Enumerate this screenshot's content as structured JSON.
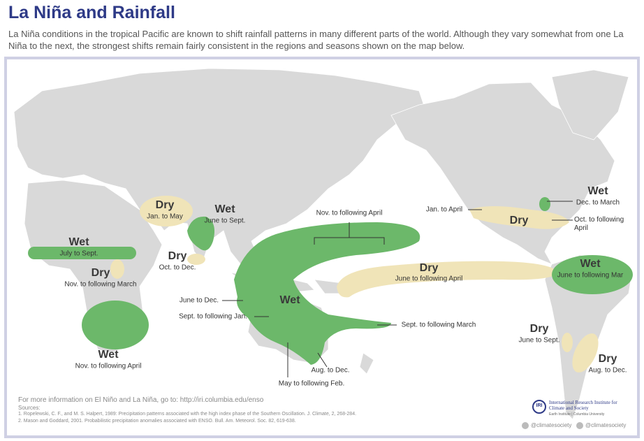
{
  "header": {
    "title": "La Niña and Rainfall",
    "description": "La Niña conditions in the tropical Pacific are known to shift rainfall patterns in many different parts of the world. Although they vary somewhat from one La Niña to the next, the strongest shifts remain fairly consistent in the regions and seasons shown on the map below."
  },
  "regions": [
    {
      "label": "Dry",
      "seasons": [
        "Jan. to May"
      ]
    },
    {
      "label": "Wet",
      "seasons": [
        "June to Sept."
      ]
    },
    {
      "label": "Dry",
      "seasons": [
        "Oct. to Dec."
      ]
    },
    {
      "label": "Wet",
      "seasons": [
        "July to Sept."
      ]
    },
    {
      "label": "Dry",
      "seasons": [
        "Nov. to following March"
      ]
    },
    {
      "label": "Wet",
      "seasons": [
        "Nov. to following April"
      ]
    },
    {
      "label": "Wet",
      "seasons": [
        "Nov. to following April",
        "June to Dec.",
        "Sept. to following Jan.",
        "Sept. to following March",
        "Aug. to Dec.",
        "May to following Feb."
      ]
    },
    {
      "label": "Dry",
      "seasons": [
        "June to following April"
      ]
    },
    {
      "label": "Wet",
      "seasons": [
        "Dec. to March"
      ]
    },
    {
      "label": "Dry",
      "seasons": [
        "Jan. to April",
        "Oct. to following April"
      ]
    },
    {
      "label": "Wet",
      "seasons": [
        "June to following Mar"
      ]
    },
    {
      "label": "Dry",
      "seasons": [
        "June to Sept."
      ]
    },
    {
      "label": "Dry",
      "seasons": [
        "Aug. to Dec."
      ]
    }
  ],
  "footer": {
    "more_info": "For more information on El Niño and La Niña, go to: http://iri.columbia.edu/enso",
    "sources_heading": "Sources:",
    "sources": [
      "1. Ropelewski, C. F., and M. S. Halpert, 1989: Precipitation patterns associated with the high index phase of the Southern Oscillation. J. Climate, 2, 268-284.",
      "2. Mason and Goddard, 2001. Probabilistic precipitation anomalies associated with ENSO. Bull. Am. Meteorol. Soc. 82, 619-638."
    ]
  },
  "logo": {
    "badge": "IRI",
    "name": "International Research Institute for Climate and Society",
    "affiliation": "Earth Institute | Columbia University"
  },
  "social": [
    "@climatesociety",
    "@climatesociety"
  ]
}
